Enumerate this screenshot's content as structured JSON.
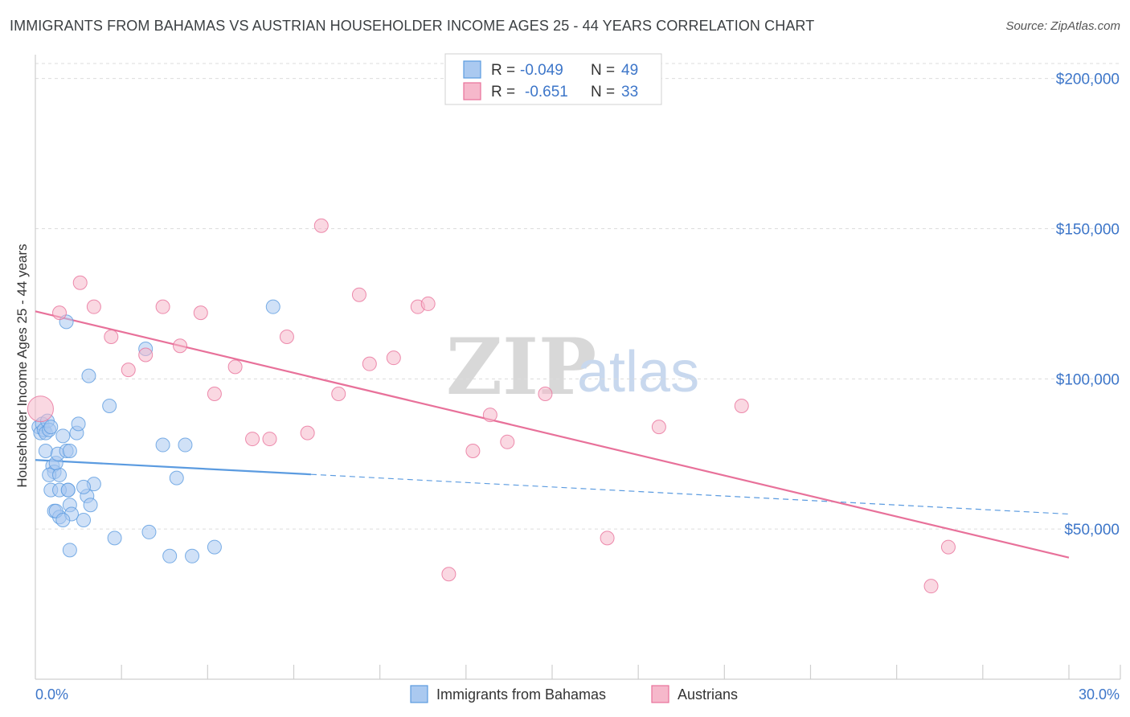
{
  "header": {
    "title": "IMMIGRANTS FROM BAHAMAS VS AUSTRIAN HOUSEHOLDER INCOME AGES 25 - 44 YEARS CORRELATION CHART",
    "source": "Source: ZipAtlas.com"
  },
  "watermark": {
    "zip": "ZIP",
    "atlas": "atlas"
  },
  "legend_top": {
    "rows": [
      {
        "r_label": "R =",
        "r_value": "-0.049",
        "n_label": "N =",
        "n_value": "49",
        "color": "#aac9f0"
      },
      {
        "r_label": "R =",
        "r_value": "-0.651",
        "n_label": "N =",
        "n_value": "33",
        "color": "#f6b8cb"
      }
    ]
  },
  "legend_bottom": {
    "items": [
      {
        "label": "Immigrants from Bahamas",
        "color": "#aac9f0"
      },
      {
        "label": "Austrians",
        "color": "#f6b8cb"
      }
    ]
  },
  "chart_data": {
    "type": "scatter",
    "title": "IMMIGRANTS FROM BAHAMAS VS AUSTRIAN HOUSEHOLDER INCOME AGES 25 - 44 YEARS CORRELATION CHART",
    "xlabel": "",
    "ylabel": "Householder Income Ages 25 - 44 years",
    "xlim": [
      0,
      30
    ],
    "ylim": [
      0,
      205000
    ],
    "x_tick_labels": [
      "0.0%",
      "30.0%"
    ],
    "y_ticks": [
      50000,
      100000,
      150000,
      200000
    ],
    "y_tick_labels": [
      "$50,000",
      "$100,000",
      "$150,000",
      "$200,000"
    ],
    "grid": true,
    "series": [
      {
        "name": "Immigrants from Bahamas",
        "color": "#5b9be0",
        "fill": "#aac9f0",
        "points": [
          [
            0.1,
            84000
          ],
          [
            0.15,
            82000
          ],
          [
            0.2,
            85000
          ],
          [
            0.25,
            83000
          ],
          [
            0.3,
            82000
          ],
          [
            0.35,
            86000
          ],
          [
            0.4,
            83000
          ],
          [
            0.45,
            84000
          ],
          [
            0.3,
            76000
          ],
          [
            0.5,
            71000
          ],
          [
            0.55,
            69000
          ],
          [
            0.4,
            68000
          ],
          [
            0.7,
            68000
          ],
          [
            0.6,
            72000
          ],
          [
            0.65,
            75000
          ],
          [
            0.8,
            81000
          ],
          [
            0.9,
            76000
          ],
          [
            1.0,
            76000
          ],
          [
            1.2,
            82000
          ],
          [
            1.25,
            85000
          ],
          [
            0.95,
            63000
          ],
          [
            0.45,
            63000
          ],
          [
            0.7,
            63000
          ],
          [
            0.55,
            56000
          ],
          [
            0.7,
            54000
          ],
          [
            1.0,
            58000
          ],
          [
            1.5,
            61000
          ],
          [
            1.6,
            58000
          ],
          [
            1.7,
            65000
          ],
          [
            1.4,
            64000
          ],
          [
            1.4,
            53000
          ],
          [
            1.05,
            55000
          ],
          [
            0.6,
            56000
          ],
          [
            0.8,
            53000
          ],
          [
            1.0,
            43000
          ],
          [
            0.95,
            63000
          ],
          [
            1.55,
            101000
          ],
          [
            2.15,
            91000
          ],
          [
            2.3,
            47000
          ],
          [
            3.2,
            110000
          ],
          [
            3.3,
            49000
          ],
          [
            3.7,
            78000
          ],
          [
            3.9,
            41000
          ],
          [
            4.1,
            67000
          ],
          [
            4.35,
            78000
          ],
          [
            4.55,
            41000
          ],
          [
            5.2,
            44000
          ],
          [
            6.9,
            124000
          ],
          [
            0.9,
            119000
          ]
        ],
        "trend": {
          "x_solid": [
            0,
            8
          ],
          "y_solid": [
            73000,
            68200
          ],
          "x_dashed": [
            8,
            30
          ],
          "y_dashed": [
            68200,
            55000
          ]
        }
      },
      {
        "name": "Austrians",
        "color": "#e8719a",
        "fill": "#f6b8cb",
        "points": [
          [
            0.15,
            90000
          ],
          [
            0.7,
            122000
          ],
          [
            1.3,
            132000
          ],
          [
            1.7,
            124000
          ],
          [
            2.2,
            114000
          ],
          [
            2.7,
            103000
          ],
          [
            3.2,
            108000
          ],
          [
            3.7,
            124000
          ],
          [
            4.2,
            111000
          ],
          [
            4.8,
            122000
          ],
          [
            5.2,
            95000
          ],
          [
            5.8,
            104000
          ],
          [
            6.3,
            80000
          ],
          [
            6.8,
            80000
          ],
          [
            7.3,
            114000
          ],
          [
            7.9,
            82000
          ],
          [
            8.3,
            151000
          ],
          [
            8.8,
            95000
          ],
          [
            9.4,
            128000
          ],
          [
            9.7,
            105000
          ],
          [
            10.4,
            107000
          ],
          [
            11.1,
            124000
          ],
          [
            11.4,
            125000
          ],
          [
            12.0,
            35000
          ],
          [
            12.7,
            76000
          ],
          [
            13.2,
            88000
          ],
          [
            13.7,
            79000
          ],
          [
            14.8,
            95000
          ],
          [
            16.6,
            47000
          ],
          [
            18.1,
            84000
          ],
          [
            20.5,
            91000
          ],
          [
            26.0,
            31000
          ],
          [
            26.5,
            44000
          ]
        ],
        "trend": {
          "x_solid": [
            0,
            30
          ],
          "y_solid": [
            122500,
            40500
          ]
        }
      }
    ]
  }
}
